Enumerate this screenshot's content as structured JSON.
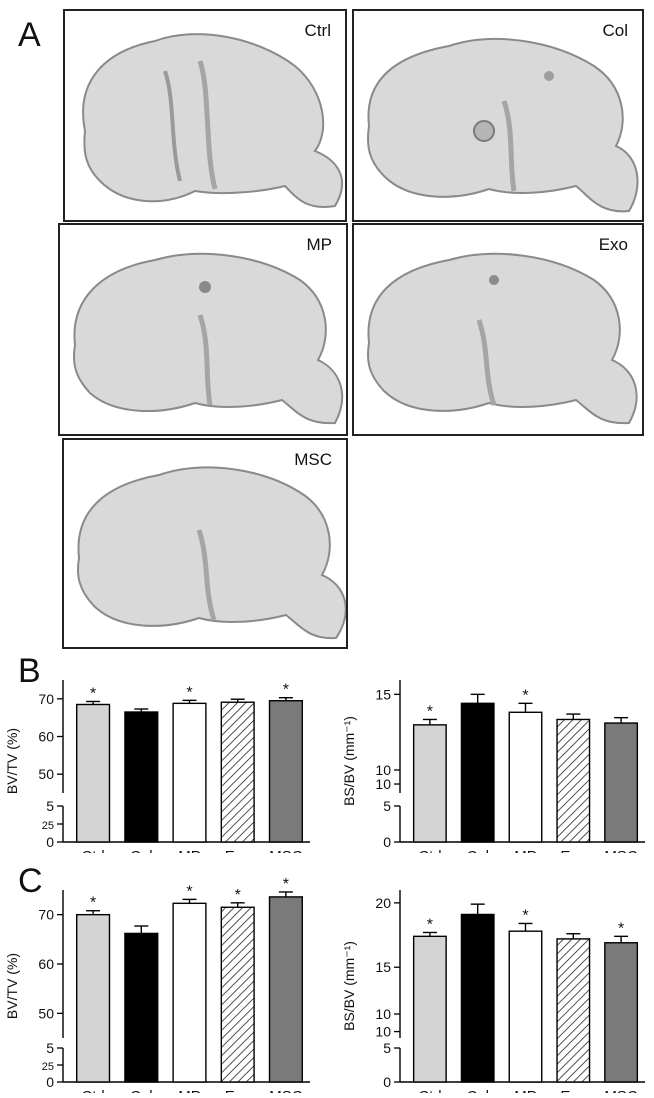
{
  "panel_labels": {
    "a": "A",
    "b": "B",
    "c": "C"
  },
  "images": [
    {
      "label": "Ctrl"
    },
    {
      "label": "Col"
    },
    {
      "label": "MP"
    },
    {
      "label": "Exo"
    },
    {
      "label": "MSC"
    }
  ],
  "colors": {
    "Ctrl": "#d4d4d4",
    "Col": "#000000",
    "MP": "#ffffff",
    "Exo": "hatched",
    "MSC": "#7a7a7a"
  },
  "chart_data": [
    {
      "id": "B-left",
      "type": "bar",
      "panel": "B",
      "categories": [
        "Ctrl",
        "Col",
        "MP",
        "Exo",
        "MSC"
      ],
      "values": [
        68.5,
        66.5,
        68.8,
        69.1,
        69.5
      ],
      "errors": [
        0.8,
        0.8,
        0.8,
        0.8,
        0.8
      ],
      "significant": [
        "*",
        "",
        "*",
        "",
        "*"
      ],
      "ylabel": "BV/TV (%)",
      "ylim": [
        0,
        70
      ],
      "axis_break": [
        5,
        50
      ],
      "ticks": [
        "70",
        "60",
        "50",
        "5",
        "25",
        "0"
      ]
    },
    {
      "id": "B-right",
      "type": "bar",
      "panel": "B",
      "categories": [
        "Ctrl",
        "Col",
        "MP",
        "Exo",
        "MSC"
      ],
      "values": [
        13.3,
        14.5,
        14.0,
        13.6,
        13.4
      ],
      "errors": [
        0.3,
        0.5,
        0.5,
        0.3,
        0.3
      ],
      "significant": [
        "*",
        "",
        "*",
        "",
        ""
      ],
      "ylabel": "BS/BV (mm⁻¹)",
      "ylim": [
        0,
        15
      ],
      "axis_break": [
        5,
        10
      ],
      "ticks": [
        "15",
        "10",
        "10",
        "5",
        "0"
      ]
    },
    {
      "id": "C-left",
      "type": "bar",
      "panel": "C",
      "categories": [
        "Ctrl",
        "Col",
        "MP",
        "Exo",
        "MSC"
      ],
      "values": [
        70.0,
        66.2,
        72.3,
        71.5,
        73.6
      ],
      "errors": [
        0.8,
        1.5,
        0.8,
        0.9,
        1.0
      ],
      "significant": [
        "*",
        "",
        "*",
        "*",
        "*"
      ],
      "ylabel": "BV/TV (%)",
      "ylim": [
        0,
        70
      ],
      "axis_break": [
        5,
        50
      ],
      "ticks": [
        "70",
        "60",
        "50",
        "5",
        "25",
        "0"
      ]
    },
    {
      "id": "C-right",
      "type": "bar",
      "panel": "C",
      "categories": [
        "Ctrl",
        "Col",
        "MP",
        "Exo",
        "MSC"
      ],
      "values": [
        17.4,
        19.1,
        17.8,
        17.2,
        16.9
      ],
      "errors": [
        0.3,
        0.8,
        0.6,
        0.4,
        0.5
      ],
      "significant": [
        "*",
        "",
        "*",
        "",
        "*"
      ],
      "ylabel": "BS/BV (mm⁻¹)",
      "ylim": [
        0,
        20
      ],
      "axis_break": [
        5,
        10
      ],
      "ticks": [
        "20",
        "15",
        "10",
        "10",
        "5",
        "0"
      ]
    }
  ]
}
